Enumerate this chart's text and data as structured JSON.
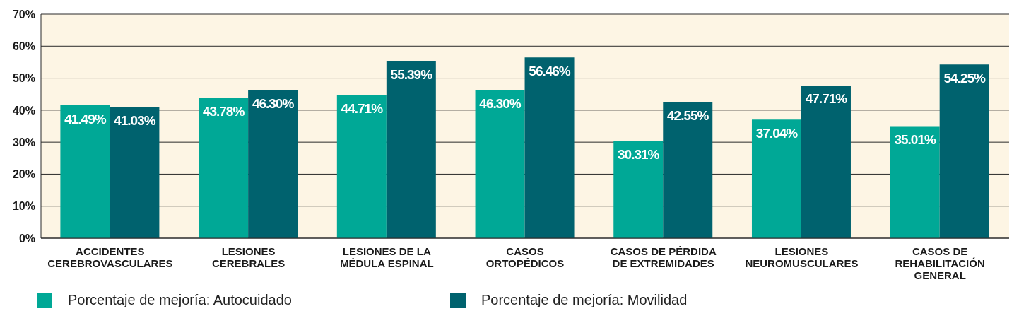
{
  "chart_data": {
    "type": "bar",
    "categories": [
      "ACCIDENTES CEREBROVASCULARES",
      "LESIONES CEREBRALES",
      "LESIONES DE LA MÉDULA ESPINAL",
      "CASOS ORTOPÉDICOS",
      "CASOS DE PÉRDIDA DE EXTREMIDADES",
      "LESIONES NEUROMUSCULARES",
      "CASOS DE REHABILITACIÓN GENERAL"
    ],
    "series": [
      {
        "name": "Porcentaje de mejoría: Autocuidado",
        "color": "#00a896",
        "values": [
          41.49,
          43.78,
          44.71,
          46.3,
          30.31,
          37.04,
          35.01
        ],
        "value_labels": [
          "41.49%",
          "43.78%",
          "44.71%",
          "46.30%",
          "30.31%",
          "37.04%",
          "35.01%"
        ]
      },
      {
        "name": "Porcentaje de mejoría: Movilidad",
        "color": "#00626e",
        "values": [
          41.03,
          46.3,
          55.39,
          56.46,
          42.55,
          47.71,
          54.25
        ],
        "value_labels": [
          "41.03%",
          "46.30%",
          "55.39%",
          "56.46%",
          "42.55%",
          "47.71%",
          "54.25%"
        ]
      }
    ],
    "ylim": [
      0,
      70
    ],
    "yticks": [
      {
        "value": 0,
        "label": "0%"
      },
      {
        "value": 10,
        "label": "10%"
      },
      {
        "value": 20,
        "label": "20%"
      },
      {
        "value": 30,
        "label": "30%"
      },
      {
        "value": 40,
        "label": "40%"
      },
      {
        "value": 50,
        "label": "50%"
      },
      {
        "value": 60,
        "label": "60%"
      },
      {
        "value": 70,
        "label": "70%"
      }
    ],
    "grid": "y",
    "legend": "bottom left"
  }
}
